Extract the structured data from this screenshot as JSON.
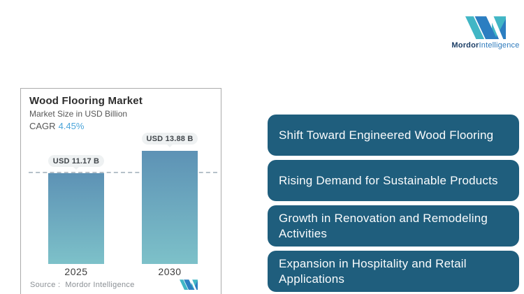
{
  "brand": {
    "name_bold": "Mordor",
    "name_regular": "Intelligence"
  },
  "chart": {
    "title": "Wood Flooring Market",
    "subtitle": "Market Size in USD Billion",
    "cagr_label": "CAGR",
    "cagr_value": "4.45%",
    "source_label": "Source :",
    "source_value": "Mordor Intelligence"
  },
  "chart_data": {
    "type": "bar",
    "categories": [
      "2025",
      "2030"
    ],
    "values": [
      11.17,
      13.88
    ],
    "value_labels": [
      "USD 11.17 B",
      "USD 13.88 B"
    ],
    "title": "Wood Flooring Market",
    "subtitle": "Market Size in USD Billion",
    "unit": "USD Billion",
    "cagr": "4.45%",
    "ylim": [
      0,
      15.5
    ],
    "grid": false,
    "legend": "none",
    "bar_gradient_top": "#5D92B5",
    "bar_gradient_bottom": "#7DC1C9",
    "reference_line": {
      "y": 11.17,
      "style": "dashed",
      "color": "#B6C1C9"
    }
  },
  "highlights": [
    "Shift Toward Engineered Wood Flooring",
    "Rising Demand for Sustainable Products",
    "Growth in Renovation and Remodeling Activities",
    "Expansion in Hospitality and Retail Applications"
  ],
  "colors": {
    "banner_fill": "#1F5E7D",
    "banner_text": "#FAFCFD",
    "cagr_accent": "#4BA5DA",
    "logo_teal": "#41B6C5",
    "logo_blue": "#2B7EC1",
    "logo_navy": "#1C3E66",
    "pill_bg": "#EEF1F2",
    "card_border": "#ABABAB"
  }
}
